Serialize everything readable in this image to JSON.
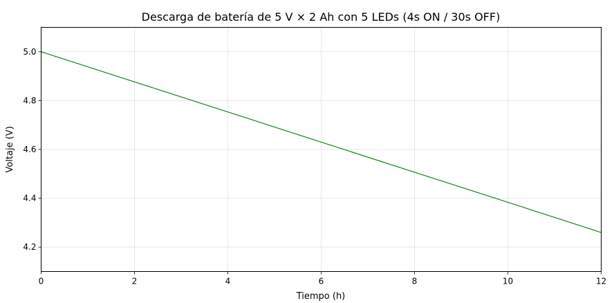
{
  "chart_data": {
    "type": "line",
    "title": "Descarga de batería de 5 V × 2 Ah con 5 LEDs (4s ON / 30s OFF)",
    "xlabel": "Tiempo (h)",
    "ylabel": "Voltaje (V)",
    "xlim": [
      0,
      12
    ],
    "ylim": [
      4.1,
      5.1
    ],
    "xticks": [
      0,
      2,
      4,
      6,
      8,
      10,
      12
    ],
    "yticks": [
      4.2,
      4.4,
      4.6,
      4.8,
      5.0
    ],
    "xtick_labels": [
      "0",
      "2",
      "4",
      "6",
      "8",
      "10",
      "12"
    ],
    "ytick_labels": [
      "4.2",
      "4.4",
      "4.6",
      "4.8",
      "5.0"
    ],
    "grid": true,
    "series": [
      {
        "color": "#1a801a",
        "x": [
          0,
          12
        ],
        "y": [
          5.0,
          4.26
        ]
      }
    ]
  }
}
